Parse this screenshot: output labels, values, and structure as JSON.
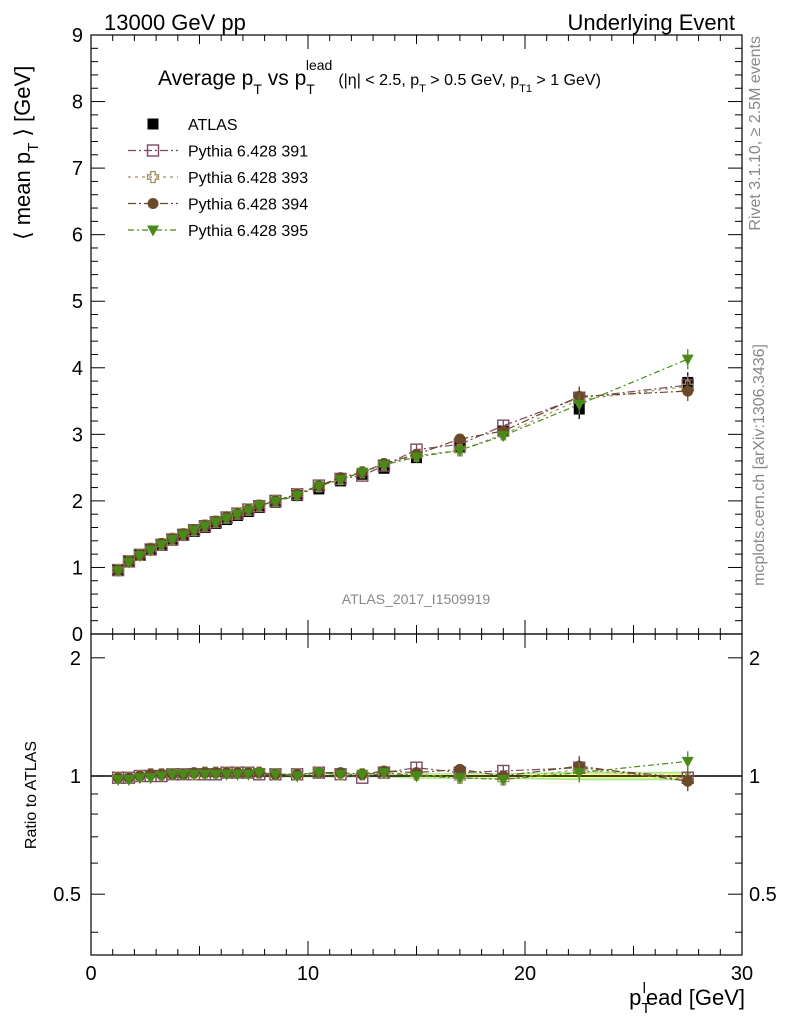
{
  "header": {
    "left": "13000 GeV pp",
    "right": "Underlying Event"
  },
  "side_labels": {
    "rivet": "Rivet 3.1.10, ≥ 2.5M events",
    "mcplots": "mcplots.cern.ch [arXiv:1306.3436]"
  },
  "watermark": "ATLAS_2017_I1509919",
  "chart_data": [
    {
      "type": "line",
      "title": {
        "main": "Average p",
        "sub1": "T",
        "mid": " vs p",
        "sub2": "T",
        "sup2": "lead",
        "cuts": "(|η| < 2.5, p",
        "cut_sub1": "T",
        "cuts2": " > 0.5 GeV, p",
        "cut_sub2": "T1",
        "cuts3": " > 1 GeV)"
      },
      "ylabel": {
        "pre": "⟨ mean p",
        "sub": "T",
        "post": " ⟩ [GeV]"
      },
      "xlim": [
        0,
        30
      ],
      "ylim": [
        0,
        9
      ],
      "yticks": [
        "0",
        "1",
        "2",
        "3",
        "4",
        "5",
        "6",
        "7",
        "8",
        "9"
      ],
      "x": [
        1.25,
        1.75,
        2.25,
        2.75,
        3.25,
        3.75,
        4.25,
        4.75,
        5.25,
        5.75,
        6.25,
        6.75,
        7.25,
        7.75,
        8.5,
        9.5,
        10.5,
        11.5,
        12.5,
        13.5,
        15,
        17,
        19,
        22.5,
        27.5
      ],
      "series": [
        {
          "name": "ATLAS",
          "color": "#000000",
          "marker": "square-filled",
          "values": [
            0.97,
            1.1,
            1.19,
            1.27,
            1.34,
            1.41,
            1.48,
            1.54,
            1.6,
            1.66,
            1.72,
            1.78,
            1.84,
            1.9,
            1.98,
            2.08,
            2.18,
            2.3,
            2.4,
            2.49,
            2.65,
            2.8,
            3.05,
            3.38,
            3.78
          ]
        },
        {
          "name": "Pythia 6.428 391",
          "color": "#7a4a62",
          "marker": "square-open",
          "values": [
            0.96,
            1.09,
            1.19,
            1.27,
            1.34,
            1.42,
            1.49,
            1.56,
            1.62,
            1.68,
            1.75,
            1.81,
            1.87,
            1.92,
            2.0,
            2.1,
            2.23,
            2.33,
            2.38,
            2.53,
            2.77,
            2.85,
            3.13,
            3.55,
            3.74
          ]
        },
        {
          "name": "Pythia 6.428 393",
          "color": "#a09060",
          "marker": "cross-open",
          "values": [
            0.96,
            1.09,
            1.19,
            1.28,
            1.35,
            1.43,
            1.5,
            1.56,
            1.63,
            1.69,
            1.75,
            1.81,
            1.87,
            1.93,
            2.0,
            2.1,
            2.22,
            2.33,
            2.43,
            2.55,
            2.68,
            2.76,
            3.0,
            3.52,
            3.72
          ]
        },
        {
          "name": "Pythia 6.428 394",
          "color": "#6b4a2a",
          "marker": "circle-filled",
          "values": [
            0.96,
            1.09,
            1.19,
            1.28,
            1.36,
            1.43,
            1.5,
            1.57,
            1.63,
            1.69,
            1.76,
            1.81,
            1.87,
            1.93,
            2.0,
            2.1,
            2.23,
            2.35,
            2.43,
            2.56,
            2.7,
            2.93,
            3.05,
            3.57,
            3.65
          ]
        },
        {
          "name": "Pythia 6.428 395",
          "color": "#4a8a1a",
          "marker": "triangle-down-filled",
          "values": [
            0.95,
            1.08,
            1.18,
            1.26,
            1.34,
            1.42,
            1.49,
            1.56,
            1.62,
            1.68,
            1.74,
            1.8,
            1.86,
            1.93,
            1.99,
            2.08,
            2.22,
            2.32,
            2.43,
            2.54,
            2.66,
            2.76,
            2.98,
            3.45,
            4.13
          ]
        }
      ]
    },
    {
      "type": "line",
      "ylabel": "Ratio to ATLAS",
      "xlabel": {
        "pre": "p",
        "sub": "T",
        "sup": "l",
        "post": "ead [GeV]"
      },
      "xlim": [
        0,
        30
      ],
      "ylim": [
        0.35,
        2.3
      ],
      "ylog": true,
      "xticks": [
        "0",
        "10",
        "20",
        "30"
      ],
      "yticks": [
        "0.5",
        "1",
        "2"
      ],
      "band": {
        "color_inner": "#ffff80",
        "color_outer": "#a8e89a"
      },
      "series": [
        {
          "name": "Pythia 6.428 391",
          "values": [
            0.99,
            0.99,
            1.0,
            1.0,
            1.0,
            1.01,
            1.01,
            1.01,
            1.01,
            1.01,
            1.02,
            1.02,
            1.02,
            1.01,
            1.01,
            1.01,
            1.02,
            1.01,
            0.99,
            1.02,
            1.05,
            1.02,
            1.03,
            1.05,
            0.99
          ]
        },
        {
          "name": "Pythia 6.428 393",
          "values": [
            0.99,
            0.99,
            1.0,
            1.01,
            1.01,
            1.01,
            1.01,
            1.01,
            1.02,
            1.02,
            1.02,
            1.02,
            1.02,
            1.02,
            1.01,
            1.01,
            1.02,
            1.01,
            1.01,
            1.02,
            1.01,
            0.99,
            0.98,
            1.04,
            0.98
          ]
        },
        {
          "name": "Pythia 6.428 394",
          "values": [
            0.99,
            0.99,
            1.0,
            1.01,
            1.01,
            1.01,
            1.01,
            1.02,
            1.02,
            1.02,
            1.02,
            1.02,
            1.02,
            1.02,
            1.01,
            1.01,
            1.02,
            1.02,
            1.01,
            1.03,
            1.02,
            1.04,
            1.0,
            1.06,
            0.97
          ]
        },
        {
          "name": "Pythia 6.428 395",
          "values": [
            0.98,
            0.98,
            0.99,
            0.99,
            1.0,
            1.01,
            1.01,
            1.01,
            1.01,
            1.01,
            1.01,
            1.01,
            1.01,
            1.02,
            1.01,
            1.0,
            1.02,
            1.01,
            1.01,
            1.02,
            1.0,
            0.99,
            0.98,
            1.02,
            1.09
          ]
        }
      ]
    }
  ]
}
